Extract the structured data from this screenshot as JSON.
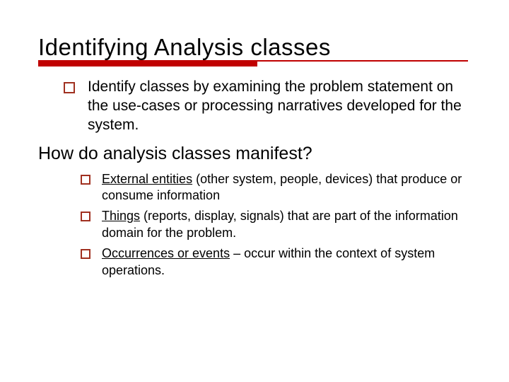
{
  "title": "Identifying Analysis classes",
  "rule": {
    "thick_color": "#c00000",
    "thin_color": "#c00000"
  },
  "bullet_marker_color": "#a03020",
  "bullets": [
    {
      "text": "Identify classes by examining the problem statement on the use-cases or processing narratives developed for the system."
    }
  ],
  "subheading": "How do analysis classes manifest?",
  "sub_bullets": [
    {
      "underlined": "External entities",
      "rest": " (other system, people, devices) that produce or consume information"
    },
    {
      "underlined": "Things",
      "rest": " (reports, display, signals) that are part of the information domain for the problem."
    },
    {
      "underlined": "Occurrences or events",
      "rest": " – occur within the context of system operations."
    }
  ],
  "fonts": {
    "title_size": 33,
    "body_size": 21,
    "subheading_size": 25,
    "sub_body_size": 18
  },
  "background_color": "#ffffff",
  "text_color": "#000000"
}
